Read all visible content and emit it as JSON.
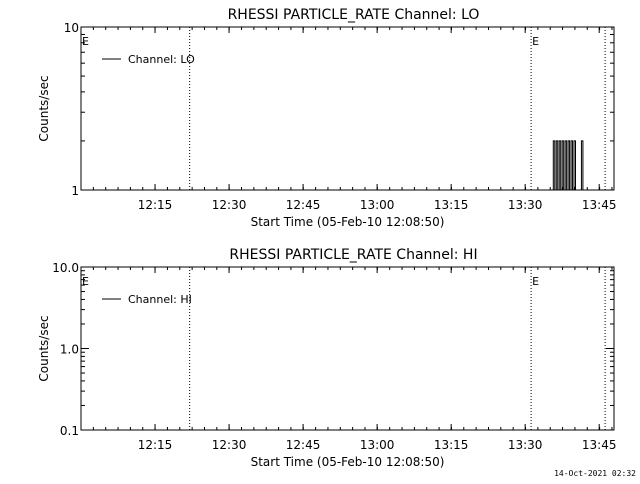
{
  "chart_data": [
    {
      "type": "line",
      "title": "RHESSI PARTICLE_RATE Channel: LO",
      "xlabel": "Start Time (05-Feb-10 12:08:50)",
      "ylabel": "Counts/sec",
      "y_scale": "log",
      "ylim": [
        1,
        10
      ],
      "y_ticks": [
        "1",
        "10"
      ],
      "x_range_minutes": [
        12.0,
        13.8
      ],
      "x_ticks": [
        {
          "label": "12:15",
          "t": 12.25
        },
        {
          "label": "12:30",
          "t": 12.5
        },
        {
          "label": "12:45",
          "t": 12.75
        },
        {
          "label": "13:00",
          "t": 13.0
        },
        {
          "label": "13:15",
          "t": 13.25
        },
        {
          "label": "13:30",
          "t": 13.5
        },
        {
          "label": "13:45",
          "t": 13.75
        }
      ],
      "markers": [
        {
          "label": "E",
          "t": 12.0
        },
        {
          "label": "E",
          "t": 13.52
        }
      ],
      "vertical_dotted_lines": [
        12.367,
        13.52,
        13.77
      ],
      "series": [
        {
          "name": "Channel: LO",
          "points": [
            [
              13.59,
              1
            ],
            [
              13.595,
              2
            ],
            [
              13.6,
              1
            ],
            [
              13.605,
              2
            ],
            [
              13.61,
              1
            ],
            [
              13.615,
              2
            ],
            [
              13.62,
              1
            ],
            [
              13.625,
              2
            ],
            [
              13.63,
              1
            ],
            [
              13.635,
              2
            ],
            [
              13.64,
              1
            ],
            [
              13.645,
              2
            ],
            [
              13.65,
              1
            ],
            [
              13.655,
              2
            ],
            [
              13.66,
              1
            ],
            [
              13.665,
              2
            ],
            [
              13.67,
              1
            ],
            [
              13.69,
              2
            ],
            [
              13.695,
              1
            ]
          ]
        }
      ],
      "legend": "top-left"
    },
    {
      "type": "line",
      "title": "RHESSI PARTICLE_RATE Channel: HI",
      "xlabel": "Start Time (05-Feb-10 12:08:50)",
      "ylabel": "Counts/sec",
      "y_scale": "log",
      "ylim": [
        0.1,
        10
      ],
      "y_ticks": [
        "0.1",
        "1.0",
        "10.0"
      ],
      "x_range_minutes": [
        12.0,
        13.8
      ],
      "x_ticks": [
        {
          "label": "12:15",
          "t": 12.25
        },
        {
          "label": "12:30",
          "t": 12.5
        },
        {
          "label": "12:45",
          "t": 12.75
        },
        {
          "label": "13:00",
          "t": 13.0
        },
        {
          "label": "13:15",
          "t": 13.25
        },
        {
          "label": "13:30",
          "t": 13.5
        },
        {
          "label": "13:45",
          "t": 13.75
        }
      ],
      "markers": [
        {
          "label": "E",
          "t": 12.0
        },
        {
          "label": "E",
          "t": 13.52
        }
      ],
      "vertical_dotted_lines": [
        12.367,
        13.52,
        13.77
      ],
      "series": [
        {
          "name": "Channel: HI",
          "points": []
        }
      ],
      "legend": "top-left"
    }
  ],
  "footer": {
    "timestamp": "14-Oct-2021 02:32"
  }
}
